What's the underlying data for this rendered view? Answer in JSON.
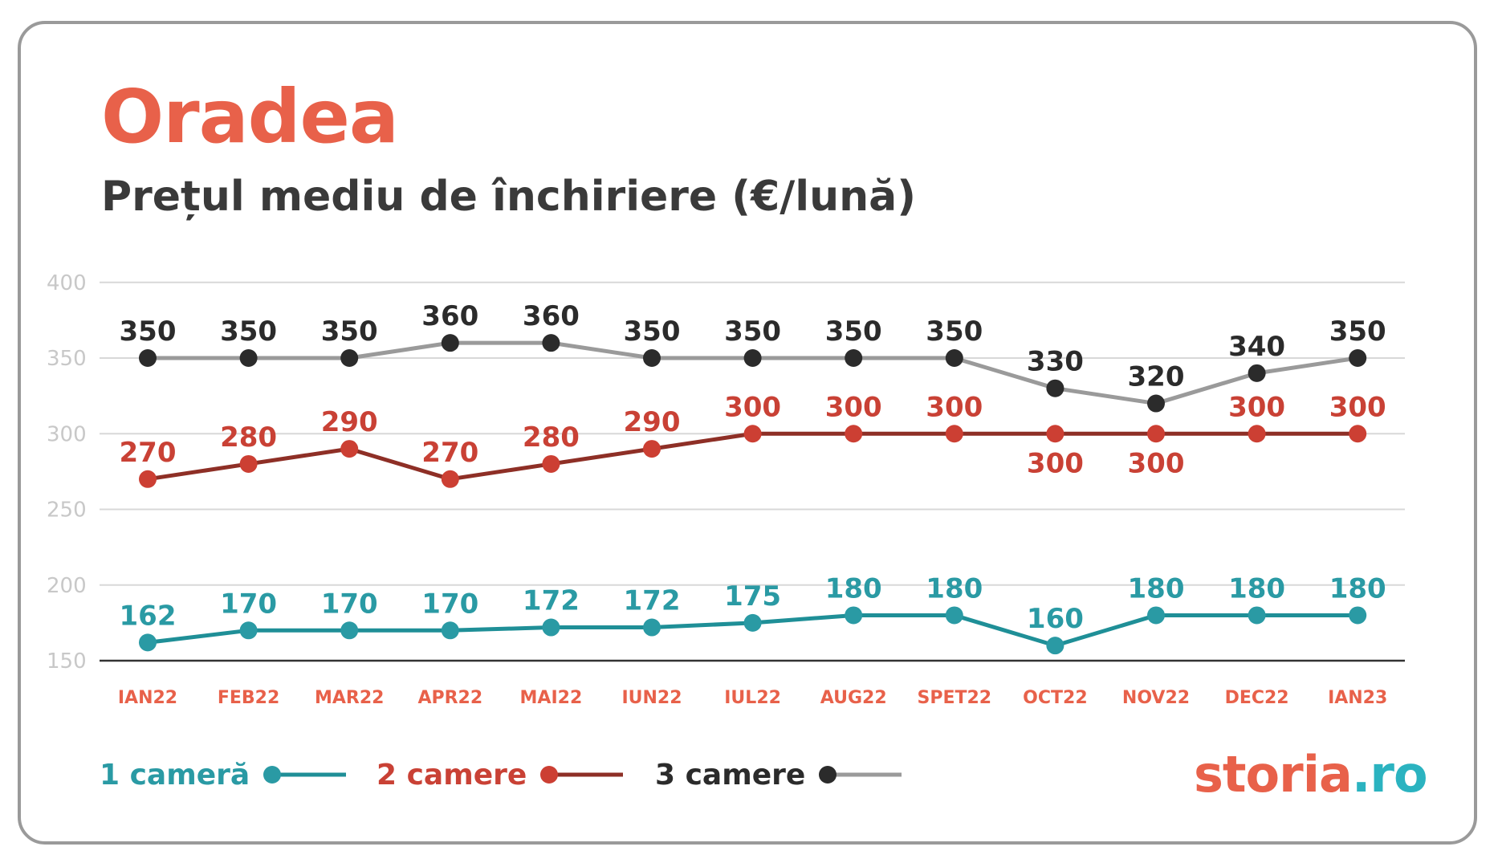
{
  "header": {
    "title": "Oradea",
    "subtitle": "Prețul mediu de închiriere (€/lună)"
  },
  "colors": {
    "title": "#e8614a",
    "one_room": "#1f8f97",
    "one_room_label": "#2a9aa4",
    "two_rooms": "#8e2f26",
    "two_rooms_marker": "#cc3f33",
    "two_rooms_label": "#c94135",
    "three_rooms_line": "#9a9a9a",
    "three_rooms_marker": "#2b2b2b",
    "x_tick": "#e8614a",
    "grid": "#d8d8d8",
    "y_tick": "#c8c8c8"
  },
  "legend": [
    {
      "label": "1 cameră",
      "series": "one_room"
    },
    {
      "label": "2 camere",
      "series": "two_rooms"
    },
    {
      "label": "3 camere",
      "series": "three_rooms"
    }
  ],
  "logo": {
    "brand": "storia",
    "tld": ".ro"
  },
  "chart_data": {
    "type": "line",
    "categories": [
      "IAN22",
      "FEB22",
      "MAR22",
      "APR22",
      "MAI22",
      "IUN22",
      "IUL22",
      "AUG22",
      "SPET22",
      "OCT22",
      "NOV22",
      "DEC22",
      "IAN23"
    ],
    "yticks": [
      150,
      200,
      250,
      300,
      350,
      400
    ],
    "ylim": [
      150,
      400
    ],
    "grid": true,
    "legend_position": "bottom-left",
    "series": [
      {
        "key": "one_room",
        "name": "1 cameră",
        "values": [
          162,
          170,
          170,
          170,
          172,
          172,
          175,
          180,
          180,
          160,
          180,
          180,
          180
        ]
      },
      {
        "key": "two_rooms",
        "name": "2 camere",
        "values": [
          270,
          280,
          290,
          270,
          280,
          290,
          300,
          300,
          300,
          300,
          300,
          300,
          300
        ],
        "labels_below": [
          9,
          10
        ]
      },
      {
        "key": "three_rooms",
        "name": "3 camere",
        "values": [
          350,
          350,
          350,
          360,
          360,
          350,
          350,
          350,
          350,
          330,
          320,
          340,
          350
        ]
      }
    ]
  }
}
